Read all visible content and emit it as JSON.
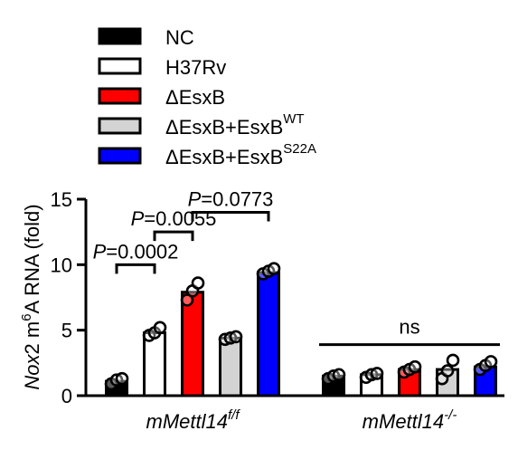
{
  "chart_data": {
    "type": "bar",
    "ylabel": {
      "italic": "Nox",
      "plain_a": "2 m",
      "superscript": "6",
      "plain_b": "A RNA (fold)"
    },
    "ylim": [
      0,
      15
    ],
    "yticks": [
      "0",
      "5",
      "10",
      "15"
    ],
    "groups": [
      {
        "label_main": "mMettl14",
        "label_sup": "f/f"
      },
      {
        "label_main": "mMettl14",
        "label_sup": "-/-"
      }
    ],
    "series": [
      {
        "name": "NC",
        "name_sup": "",
        "fill": "#000000",
        "values": [
          1.1,
          1.5
        ],
        "points": [
          [
            0.9,
            1.2,
            1.3
          ],
          [
            1.3,
            1.5,
            1.6
          ]
        ]
      },
      {
        "name": "H37Rv",
        "name_sup": "",
        "fill": "#ffffff",
        "values": [
          4.8,
          1.6
        ],
        "points": [
          [
            4.6,
            4.8,
            5.2
          ],
          [
            1.4,
            1.6,
            1.7
          ]
        ]
      },
      {
        "name": "ΔEsxB",
        "name_sup": "",
        "fill": "#ff0000",
        "values": [
          7.9,
          2.0
        ],
        "points": [
          [
            7.3,
            8.0,
            8.6
          ],
          [
            1.8,
            2.0,
            2.2
          ]
        ]
      },
      {
        "name": "ΔEsxB+EsxB",
        "name_sup": "WT",
        "fill": "#d3d3d3",
        "values": [
          4.4,
          2.0
        ],
        "points": [
          [
            4.3,
            4.4,
            4.5
          ],
          [
            1.3,
            1.9,
            2.7
          ]
        ]
      },
      {
        "name": "ΔEsxB+EsxB",
        "name_sup": "S22A",
        "fill": "#0000ff",
        "values": [
          9.4,
          2.2
        ],
        "points": [
          [
            9.3,
            9.5,
            9.7
          ],
          [
            2.0,
            2.3,
            2.6
          ]
        ]
      }
    ],
    "comparisons": [
      {
        "p_italic": "P",
        "p_value": "=0.0002",
        "from_bar": 0,
        "to_bar": 1,
        "y": 10.0
      },
      {
        "p_italic": "P",
        "p_value": "=0.0055",
        "from_bar": 1,
        "to_bar": 2,
        "y": 12.5
      },
      {
        "p_italic": "P",
        "p_value": "=0.0773",
        "from_bar": 2,
        "to_bar": 4,
        "y": 14.0
      },
      {
        "label": "ns",
        "group": 1,
        "y": 3.9
      }
    ],
    "grid": false,
    "legend": "top"
  }
}
